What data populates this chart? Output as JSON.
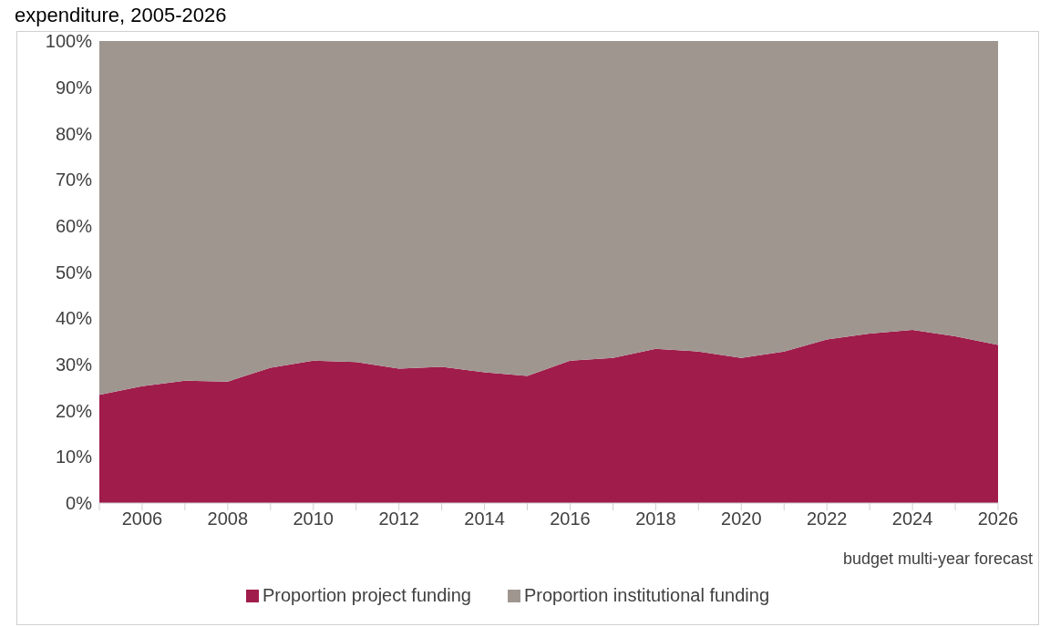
{
  "chart_data": {
    "type": "area",
    "title": "expenditure, 2005-2026",
    "stacked": true,
    "x": [
      2005,
      2006,
      2007,
      2008,
      2009,
      2010,
      2011,
      2012,
      2013,
      2014,
      2015,
      2016,
      2017,
      2018,
      2019,
      2020,
      2021,
      2022,
      2023,
      2024,
      2025,
      2026
    ],
    "series": [
      {
        "name": "Proportion project funding",
        "color": "#a01c4b",
        "values": [
          23.4,
          25.3,
          26.5,
          26.3,
          29.3,
          30.8,
          30.5,
          29.1,
          29.5,
          28.3,
          27.5,
          30.8,
          31.4,
          33.4,
          32.8,
          31.4,
          32.8,
          35.4,
          36.7,
          37.5,
          36.1,
          34.2
        ]
      },
      {
        "name": "Proportion institutional funding",
        "color": "#9f9690",
        "values": [
          76.6,
          74.7,
          73.5,
          73.7,
          70.7,
          69.2,
          69.5,
          70.9,
          70.5,
          71.7,
          72.5,
          69.2,
          68.6,
          66.6,
          67.2,
          68.6,
          67.2,
          64.6,
          63.3,
          62.5,
          63.9,
          65.8
        ]
      }
    ],
    "xlim": [
      2005,
      2026
    ],
    "xticks": [
      {
        "value": 2005,
        "label": null
      },
      2006,
      {
        "value": 2007,
        "label": null
      },
      2008,
      {
        "value": 2009,
        "label": null
      },
      2010,
      {
        "value": 2011,
        "label": null
      },
      2012,
      {
        "value": 2013,
        "label": null
      },
      2014,
      {
        "value": 2015,
        "label": null
      },
      2016,
      {
        "value": 2017,
        "label": null
      },
      2018,
      {
        "value": 2019,
        "label": null
      },
      2020,
      {
        "value": 2021,
        "label": null
      },
      2022,
      {
        "value": 2023,
        "label": null
      },
      2024,
      {
        "value": 2025,
        "label": null
      },
      2026
    ],
    "ylim": [
      0,
      100
    ],
    "yticks": [
      {
        "value": 0,
        "label": "0%"
      },
      {
        "value": 10,
        "label": "10%"
      },
      {
        "value": 20,
        "label": "20%"
      },
      {
        "value": 30,
        "label": "30%"
      },
      {
        "value": 40,
        "label": "40%"
      },
      {
        "value": 50,
        "label": "50%"
      },
      {
        "value": 60,
        "label": "60%"
      },
      {
        "value": 70,
        "label": "70%"
      },
      {
        "value": 80,
        "label": "80%"
      },
      {
        "value": 90,
        "label": "90%"
      },
      {
        "value": 100,
        "label": "100%"
      }
    ],
    "annotations": [
      "budget multi-year forecast"
    ],
    "grid": false,
    "legend": "bottom"
  }
}
